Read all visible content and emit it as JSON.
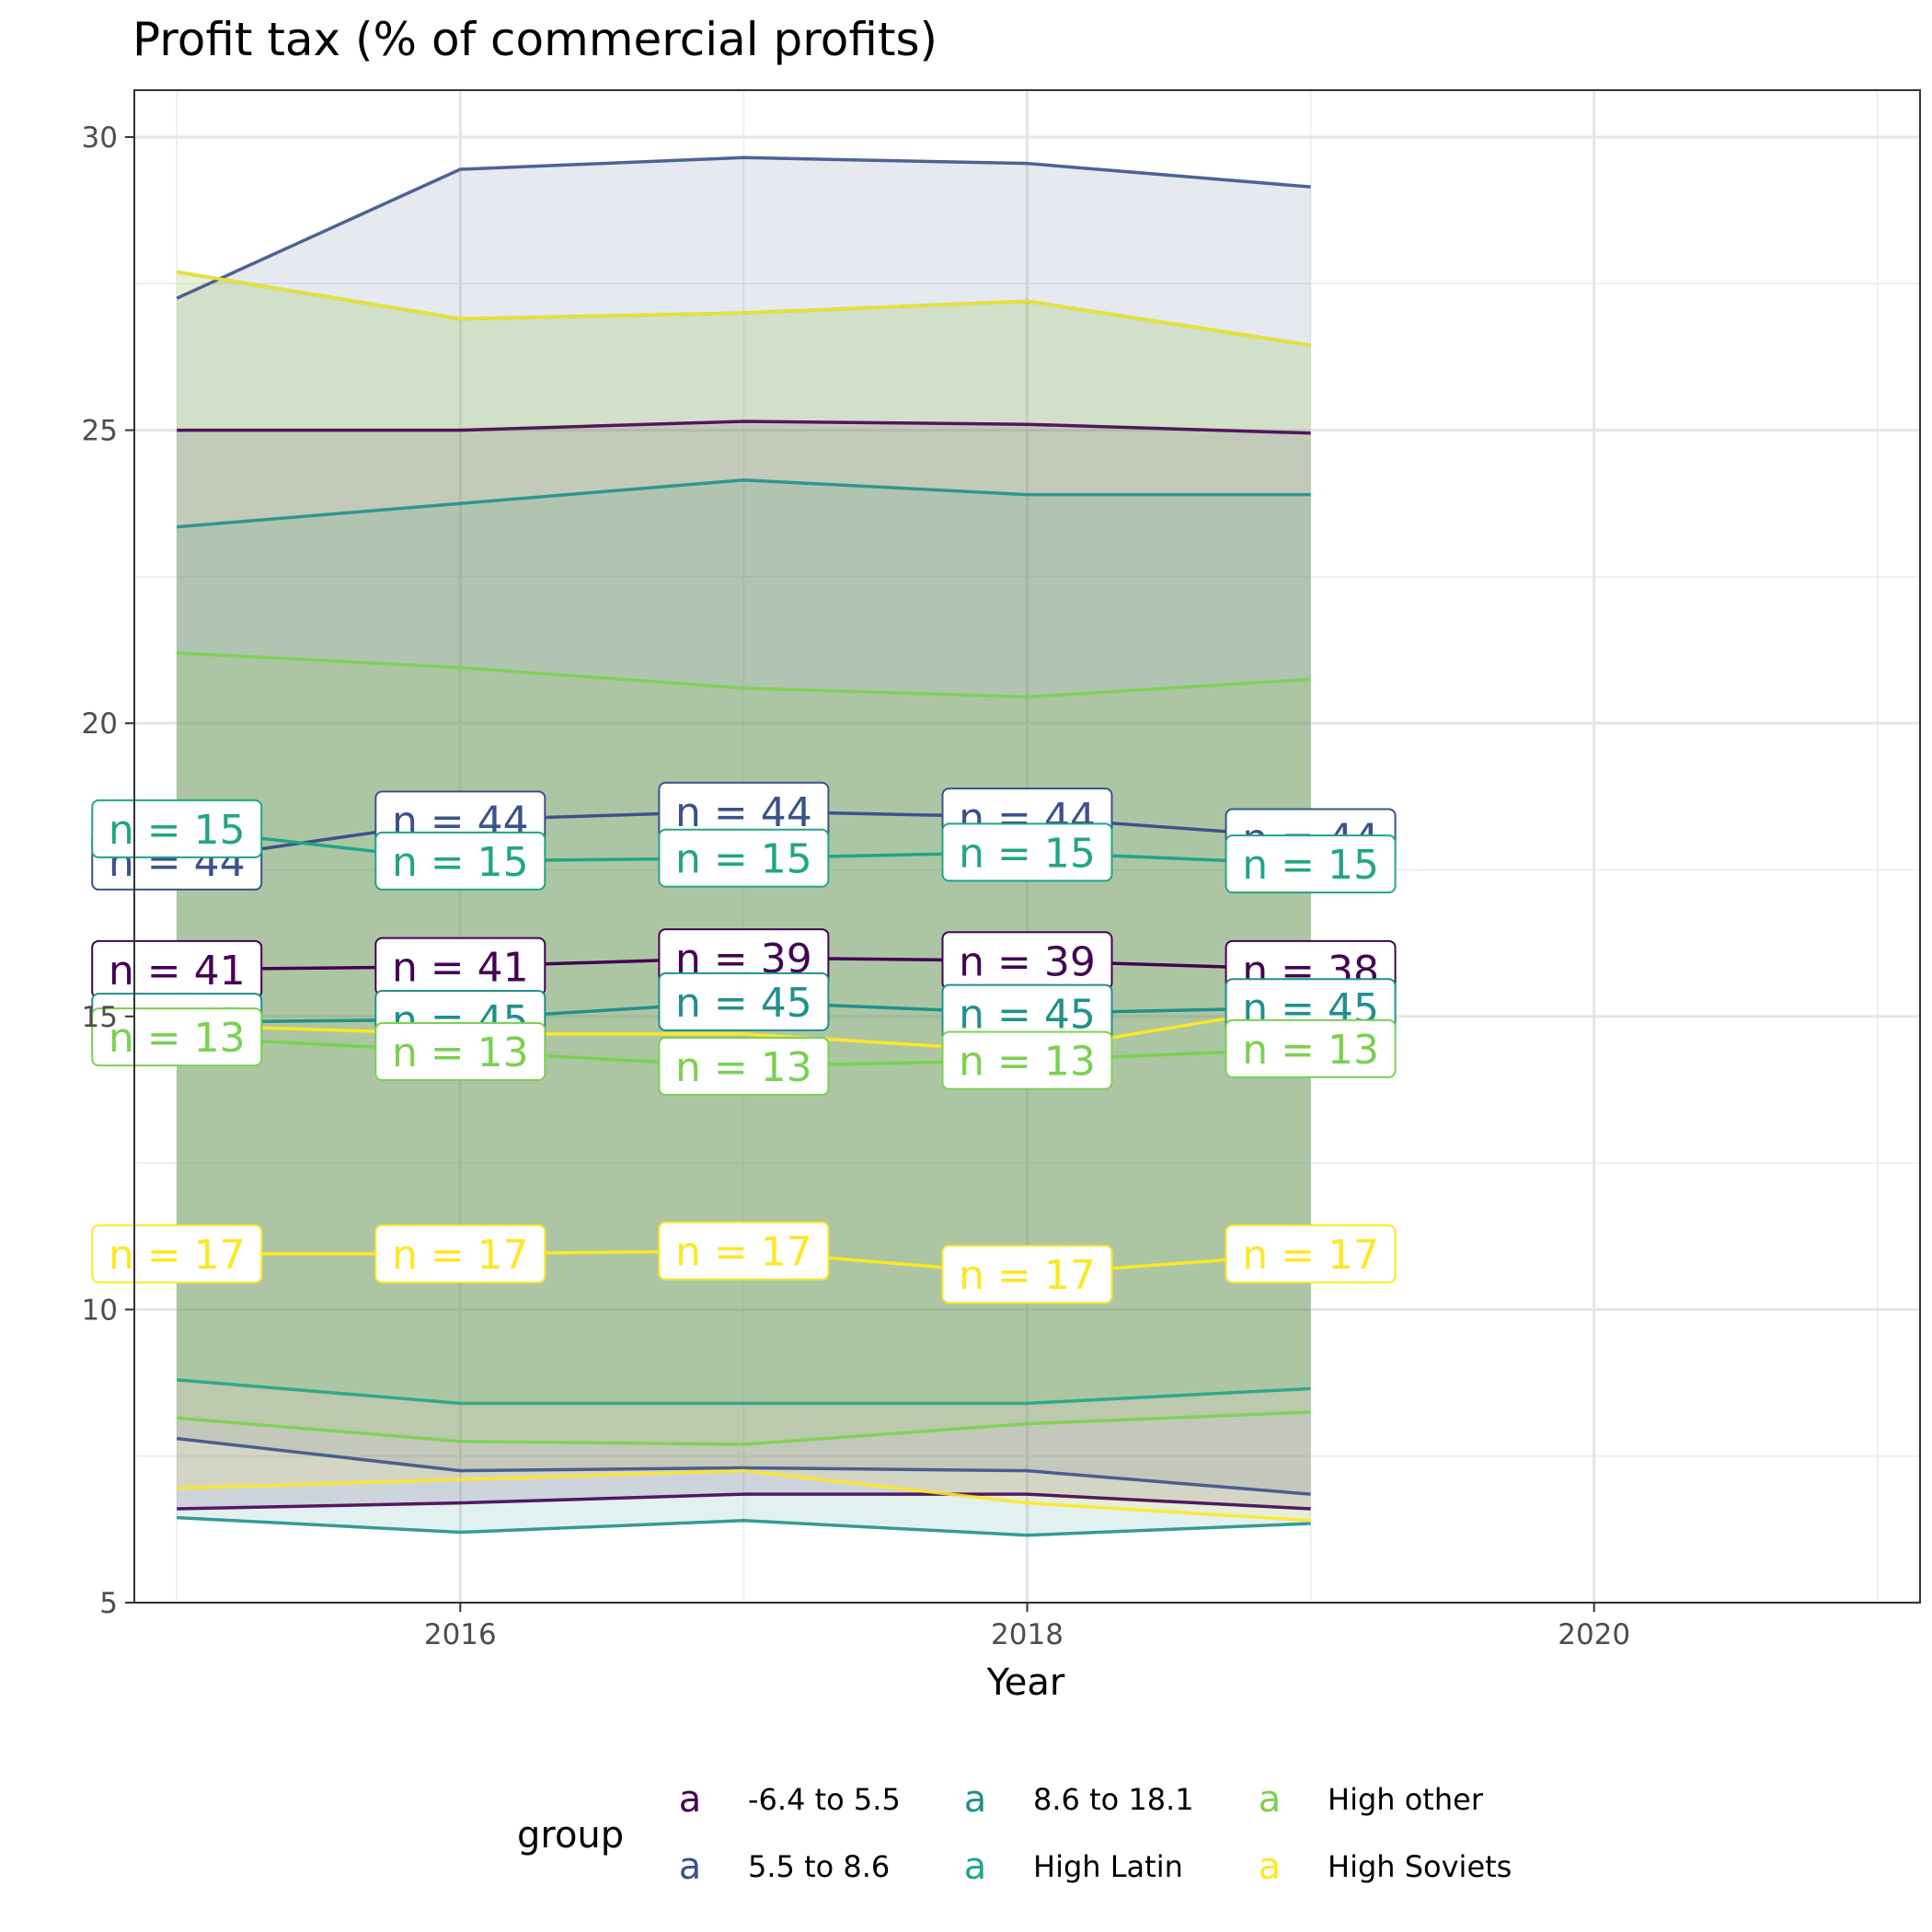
{
  "chart_data": {
    "type": "line",
    "title": "Profit tax (% of commercial profits)",
    "xlabel": "Year",
    "ylabel": "",
    "xlim": [
      2014.85,
      2021.15
    ],
    "ylim": [
      5,
      30.8
    ],
    "x_ticks": [
      2016,
      2018,
      2020
    ],
    "x_minor_ticks": [
      2015,
      2017,
      2019,
      2021
    ],
    "y_ticks": [
      5,
      10,
      15,
      20,
      25,
      30
    ],
    "y_minor_ticks": [
      7.5,
      12.5,
      17.5,
      22.5,
      27.5
    ],
    "grid": true,
    "legend": {
      "title": "group",
      "position": "bottom",
      "key_glyph": "a"
    },
    "x": [
      2015,
      2016,
      2017,
      2018,
      2019
    ],
    "series": [
      {
        "name": "-6.4 to 5.5",
        "color": "#440154",
        "mean": [
          15.8,
          15.85,
          16.0,
          15.95,
          15.8
        ],
        "upper": [
          25.0,
          25.0,
          25.15,
          25.1,
          24.95
        ],
        "lower": [
          6.6,
          6.7,
          6.85,
          6.85,
          6.6
        ],
        "n": [
          41,
          41,
          39,
          39,
          38
        ],
        "fill_opacity": 0.13
      },
      {
        "name": "5.5 to 8.6",
        "color": "#3b528b",
        "mean": [
          17.65,
          18.35,
          18.5,
          18.4,
          18.05
        ],
        "upper": [
          27.25,
          29.45,
          29.65,
          29.55,
          29.15
        ],
        "lower": [
          7.8,
          7.25,
          7.3,
          7.25,
          6.85
        ],
        "n": [
          44,
          44,
          44,
          44,
          44
        ],
        "fill_opacity": 0.13
      },
      {
        "name": "8.6 to 18.1",
        "color": "#21908c",
        "mean": [
          14.9,
          14.95,
          15.25,
          15.05,
          15.15
        ],
        "upper": [
          23.35,
          23.75,
          24.15,
          23.9,
          23.9
        ],
        "lower": [
          6.45,
          6.2,
          6.4,
          6.15,
          6.35
        ],
        "n": [
          45,
          45,
          45,
          45,
          45
        ],
        "fill_opacity": 0.13
      },
      {
        "name": "High Latin",
        "color": "#21a585",
        "mean": [
          18.2,
          17.65,
          17.7,
          17.8,
          17.6
        ],
        "upper": [
          27.7,
          26.9,
          27.0,
          27.2,
          26.45
        ],
        "lower": [
          8.8,
          8.4,
          8.4,
          8.4,
          8.65
        ],
        "n": [
          15,
          15,
          15,
          15,
          15
        ],
        "fill_opacity": 0.13
      },
      {
        "name": "High other",
        "color": "#7ad151",
        "mean": [
          14.65,
          14.4,
          14.15,
          14.25,
          14.45
        ],
        "upper": [
          21.2,
          20.95,
          20.6,
          20.45,
          20.75
        ],
        "lower": [
          8.15,
          7.75,
          7.7,
          8.05,
          8.25
        ],
        "n": [
          13,
          13,
          13,
          13,
          13
        ],
        "fill_opacity": 0.13
      },
      {
        "name": "High Soviets",
        "color": "#fde725",
        "mean": [
          14.85,
          14.7,
          14.7,
          14.4,
          15.2
        ],
        "upper": [
          27.7,
          26.9,
          27.0,
          27.2,
          26.45
        ],
        "lower": [
          6.95,
          7.1,
          7.25,
          6.7,
          6.4
        ],
        "n_line": [
          10.95,
          10.95,
          11.0,
          10.6,
          10.95
        ],
        "n": [
          17,
          17,
          17,
          17,
          17
        ],
        "fill_opacity": 0.13
      }
    ]
  }
}
